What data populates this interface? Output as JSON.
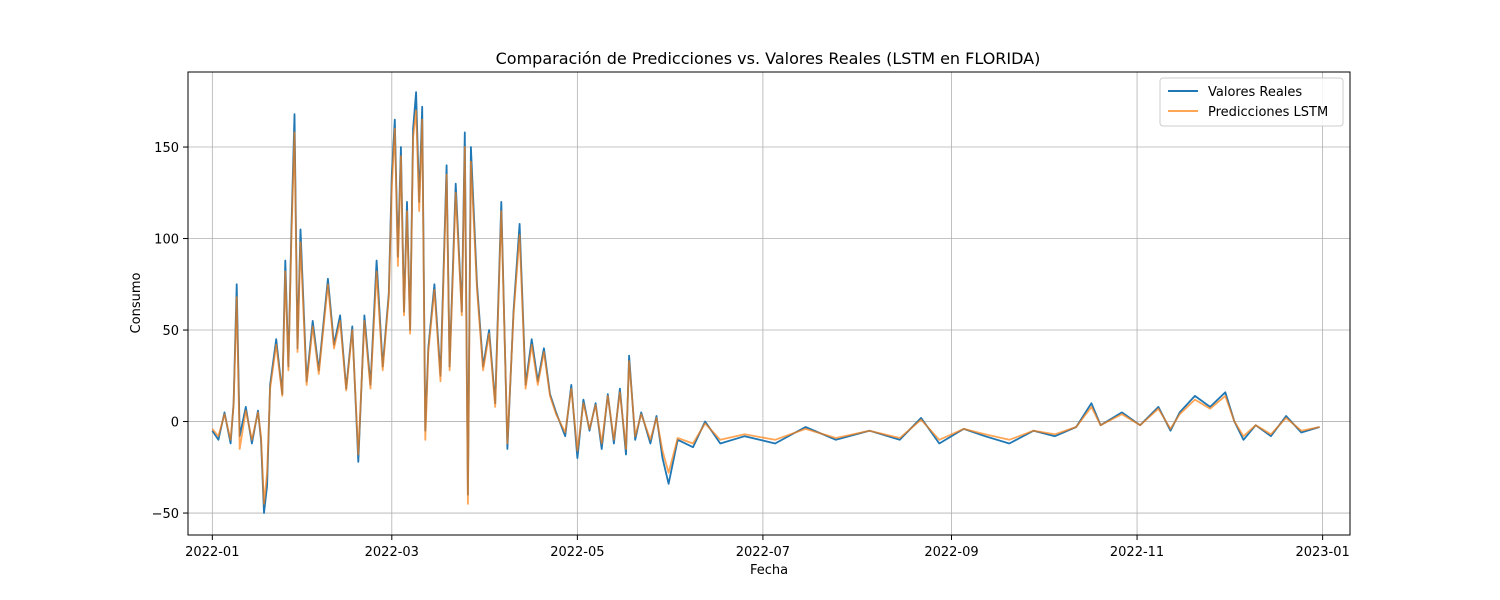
{
  "chart_data": {
    "type": "line",
    "title": "Comparación de Predicciones vs. Valores Reales (LSTM en FLORIDA)",
    "xlabel": "Fecha",
    "ylabel": "Consumo",
    "x_ticks": [
      "2022-01",
      "2022-03",
      "2022-05",
      "2022-07",
      "2022-09",
      "2022-11",
      "2023-01"
    ],
    "y_ticks": [
      -50,
      0,
      50,
      100,
      150
    ],
    "xlim": [
      "2021-12-24",
      "2023-01-10"
    ],
    "ylim": [
      -62,
      191
    ],
    "grid": true,
    "legend_position": "top-right",
    "colors": {
      "real": "#1f77b4",
      "pred": "#ff7f0e"
    },
    "series": [
      {
        "name": "Valores Reales",
        "key": "real",
        "points": [
          [
            "2022-01-01",
            -5
          ],
          [
            "2022-01-03",
            -10
          ],
          [
            "2022-01-05",
            5
          ],
          [
            "2022-01-07",
            -12
          ],
          [
            "2022-01-08",
            10
          ],
          [
            "2022-01-09",
            75
          ],
          [
            "2022-01-10",
            -8
          ],
          [
            "2022-01-12",
            8
          ],
          [
            "2022-01-14",
            -12
          ],
          [
            "2022-01-16",
            6
          ],
          [
            "2022-01-17",
            -10
          ],
          [
            "2022-01-18",
            -50
          ],
          [
            "2022-01-19",
            -35
          ],
          [
            "2022-01-20",
            20
          ],
          [
            "2022-01-22",
            45
          ],
          [
            "2022-01-24",
            15
          ],
          [
            "2022-01-25",
            88
          ],
          [
            "2022-01-26",
            30
          ],
          [
            "2022-01-27",
            105
          ],
          [
            "2022-01-28",
            168
          ],
          [
            "2022-01-29",
            40
          ],
          [
            "2022-01-30",
            105
          ],
          [
            "2022-02-01",
            22
          ],
          [
            "2022-02-03",
            55
          ],
          [
            "2022-02-05",
            28
          ],
          [
            "2022-02-08",
            78
          ],
          [
            "2022-02-10",
            42
          ],
          [
            "2022-02-12",
            58
          ],
          [
            "2022-02-14",
            18
          ],
          [
            "2022-02-16",
            52
          ],
          [
            "2022-02-18",
            -22
          ],
          [
            "2022-02-20",
            58
          ],
          [
            "2022-02-22",
            20
          ],
          [
            "2022-02-24",
            88
          ],
          [
            "2022-02-26",
            30
          ],
          [
            "2022-02-28",
            70
          ],
          [
            "2022-03-01",
            135
          ],
          [
            "2022-03-02",
            165
          ],
          [
            "2022-03-03",
            90
          ],
          [
            "2022-03-04",
            150
          ],
          [
            "2022-03-05",
            60
          ],
          [
            "2022-03-06",
            120
          ],
          [
            "2022-03-07",
            50
          ],
          [
            "2022-03-08",
            160
          ],
          [
            "2022-03-09",
            180
          ],
          [
            "2022-03-10",
            120
          ],
          [
            "2022-03-11",
            172
          ],
          [
            "2022-03-12",
            -5
          ],
          [
            "2022-03-13",
            40
          ],
          [
            "2022-03-15",
            75
          ],
          [
            "2022-03-17",
            25
          ],
          [
            "2022-03-19",
            140
          ],
          [
            "2022-03-20",
            30
          ],
          [
            "2022-03-22",
            130
          ],
          [
            "2022-03-24",
            60
          ],
          [
            "2022-03-25",
            158
          ],
          [
            "2022-03-26",
            -40
          ],
          [
            "2022-03-27",
            150
          ],
          [
            "2022-03-29",
            75
          ],
          [
            "2022-03-31",
            30
          ],
          [
            "2022-04-02",
            50
          ],
          [
            "2022-04-04",
            10
          ],
          [
            "2022-04-06",
            120
          ],
          [
            "2022-04-08",
            -15
          ],
          [
            "2022-04-10",
            60
          ],
          [
            "2022-04-12",
            108
          ],
          [
            "2022-04-14",
            20
          ],
          [
            "2022-04-16",
            45
          ],
          [
            "2022-04-18",
            22
          ],
          [
            "2022-04-20",
            40
          ],
          [
            "2022-04-22",
            15
          ],
          [
            "2022-04-24",
            5
          ],
          [
            "2022-04-27",
            -8
          ],
          [
            "2022-04-29",
            20
          ],
          [
            "2022-05-01",
            -20
          ],
          [
            "2022-05-03",
            12
          ],
          [
            "2022-05-05",
            -5
          ],
          [
            "2022-05-07",
            10
          ],
          [
            "2022-05-09",
            -15
          ],
          [
            "2022-05-11",
            15
          ],
          [
            "2022-05-13",
            -12
          ],
          [
            "2022-05-15",
            18
          ],
          [
            "2022-05-17",
            -18
          ],
          [
            "2022-05-18",
            36
          ],
          [
            "2022-05-20",
            -10
          ],
          [
            "2022-05-22",
            5
          ],
          [
            "2022-05-25",
            -12
          ],
          [
            "2022-05-27",
            3
          ],
          [
            "2022-05-29",
            -20
          ],
          [
            "2022-05-31",
            -34
          ],
          [
            "2022-06-03",
            -10
          ],
          [
            "2022-06-08",
            -14
          ],
          [
            "2022-06-12",
            0
          ],
          [
            "2022-06-17",
            -12
          ],
          [
            "2022-06-25",
            -8
          ],
          [
            "2022-07-05",
            -12
          ],
          [
            "2022-07-15",
            -3
          ],
          [
            "2022-07-25",
            -10
          ],
          [
            "2022-08-05",
            -5
          ],
          [
            "2022-08-15",
            -10
          ],
          [
            "2022-08-22",
            2
          ],
          [
            "2022-08-28",
            -12
          ],
          [
            "2022-09-05",
            -4
          ],
          [
            "2022-09-12",
            -8
          ],
          [
            "2022-09-20",
            -12
          ],
          [
            "2022-09-28",
            -5
          ],
          [
            "2022-10-05",
            -8
          ],
          [
            "2022-10-12",
            -3
          ],
          [
            "2022-10-17",
            10
          ],
          [
            "2022-10-20",
            -2
          ],
          [
            "2022-10-27",
            5
          ],
          [
            "2022-11-02",
            -2
          ],
          [
            "2022-11-08",
            8
          ],
          [
            "2022-11-12",
            -5
          ],
          [
            "2022-11-15",
            5
          ],
          [
            "2022-11-20",
            14
          ],
          [
            "2022-11-25",
            8
          ],
          [
            "2022-11-30",
            16
          ],
          [
            "2022-12-03",
            0
          ],
          [
            "2022-12-06",
            -10
          ],
          [
            "2022-12-10",
            -2
          ],
          [
            "2022-12-15",
            -8
          ],
          [
            "2022-12-20",
            3
          ],
          [
            "2022-12-25",
            -6
          ],
          [
            "2022-12-31",
            -3
          ]
        ]
      },
      {
        "name": "Predicciones LSTM",
        "key": "pred",
        "points": [
          [
            "2022-01-01",
            -4
          ],
          [
            "2022-01-03",
            -8
          ],
          [
            "2022-01-05",
            4
          ],
          [
            "2022-01-07",
            -10
          ],
          [
            "2022-01-08",
            9
          ],
          [
            "2022-01-09",
            68
          ],
          [
            "2022-01-10",
            -15
          ],
          [
            "2022-01-12",
            6
          ],
          [
            "2022-01-14",
            -10
          ],
          [
            "2022-01-16",
            5
          ],
          [
            "2022-01-17",
            -8
          ],
          [
            "2022-01-18",
            -45
          ],
          [
            "2022-01-19",
            -28
          ],
          [
            "2022-01-20",
            18
          ],
          [
            "2022-01-22",
            42
          ],
          [
            "2022-01-24",
            14
          ],
          [
            "2022-01-25",
            82
          ],
          [
            "2022-01-26",
            28
          ],
          [
            "2022-01-27",
            100
          ],
          [
            "2022-01-28",
            158
          ],
          [
            "2022-01-29",
            38
          ],
          [
            "2022-01-30",
            98
          ],
          [
            "2022-02-01",
            20
          ],
          [
            "2022-02-03",
            52
          ],
          [
            "2022-02-05",
            26
          ],
          [
            "2022-02-08",
            75
          ],
          [
            "2022-02-10",
            40
          ],
          [
            "2022-02-12",
            55
          ],
          [
            "2022-02-14",
            17
          ],
          [
            "2022-02-16",
            50
          ],
          [
            "2022-02-18",
            -18
          ],
          [
            "2022-02-20",
            55
          ],
          [
            "2022-02-22",
            18
          ],
          [
            "2022-02-24",
            82
          ],
          [
            "2022-02-26",
            28
          ],
          [
            "2022-02-28",
            68
          ],
          [
            "2022-03-01",
            128
          ],
          [
            "2022-03-02",
            160
          ],
          [
            "2022-03-03",
            85
          ],
          [
            "2022-03-04",
            145
          ],
          [
            "2022-03-05",
            58
          ],
          [
            "2022-03-06",
            115
          ],
          [
            "2022-03-07",
            48
          ],
          [
            "2022-03-08",
            155
          ],
          [
            "2022-03-09",
            170
          ],
          [
            "2022-03-10",
            115
          ],
          [
            "2022-03-11",
            165
          ],
          [
            "2022-03-12",
            -10
          ],
          [
            "2022-03-13",
            38
          ],
          [
            "2022-03-15",
            72
          ],
          [
            "2022-03-17",
            22
          ],
          [
            "2022-03-19",
            135
          ],
          [
            "2022-03-20",
            28
          ],
          [
            "2022-03-22",
            125
          ],
          [
            "2022-03-24",
            58
          ],
          [
            "2022-03-25",
            150
          ],
          [
            "2022-03-26",
            -45
          ],
          [
            "2022-03-27",
            142
          ],
          [
            "2022-03-29",
            72
          ],
          [
            "2022-03-31",
            28
          ],
          [
            "2022-04-02",
            48
          ],
          [
            "2022-04-04",
            8
          ],
          [
            "2022-04-06",
            115
          ],
          [
            "2022-04-08",
            -12
          ],
          [
            "2022-04-10",
            58
          ],
          [
            "2022-04-12",
            102
          ],
          [
            "2022-04-14",
            18
          ],
          [
            "2022-04-16",
            42
          ],
          [
            "2022-04-18",
            20
          ],
          [
            "2022-04-20",
            38
          ],
          [
            "2022-04-22",
            14
          ],
          [
            "2022-04-24",
            4
          ],
          [
            "2022-04-27",
            -6
          ],
          [
            "2022-04-29",
            18
          ],
          [
            "2022-05-01",
            -16
          ],
          [
            "2022-05-03",
            10
          ],
          [
            "2022-05-05",
            -4
          ],
          [
            "2022-05-07",
            9
          ],
          [
            "2022-05-09",
            -12
          ],
          [
            "2022-05-11",
            14
          ],
          [
            "2022-05-13",
            -10
          ],
          [
            "2022-05-15",
            16
          ],
          [
            "2022-05-17",
            -15
          ],
          [
            "2022-05-18",
            33
          ],
          [
            "2022-05-20",
            -8
          ],
          [
            "2022-05-22",
            4
          ],
          [
            "2022-05-25",
            -10
          ],
          [
            "2022-05-27",
            2
          ],
          [
            "2022-05-29",
            -16
          ],
          [
            "2022-05-31",
            -28
          ],
          [
            "2022-06-03",
            -9
          ],
          [
            "2022-06-08",
            -12
          ],
          [
            "2022-06-12",
            -1
          ],
          [
            "2022-06-17",
            -10
          ],
          [
            "2022-06-25",
            -7
          ],
          [
            "2022-07-05",
            -10
          ],
          [
            "2022-07-15",
            -4
          ],
          [
            "2022-07-25",
            -9
          ],
          [
            "2022-08-05",
            -5
          ],
          [
            "2022-08-15",
            -9
          ],
          [
            "2022-08-22",
            1
          ],
          [
            "2022-08-28",
            -10
          ],
          [
            "2022-09-05",
            -4
          ],
          [
            "2022-09-12",
            -7
          ],
          [
            "2022-09-20",
            -10
          ],
          [
            "2022-09-28",
            -5
          ],
          [
            "2022-10-05",
            -7
          ],
          [
            "2022-10-12",
            -3
          ],
          [
            "2022-10-17",
            8
          ],
          [
            "2022-10-20",
            -2
          ],
          [
            "2022-10-27",
            4
          ],
          [
            "2022-11-02",
            -2
          ],
          [
            "2022-11-08",
            7
          ],
          [
            "2022-11-12",
            -4
          ],
          [
            "2022-11-15",
            4
          ],
          [
            "2022-11-20",
            12
          ],
          [
            "2022-11-25",
            7
          ],
          [
            "2022-11-30",
            14
          ],
          [
            "2022-12-03",
            0
          ],
          [
            "2022-12-06",
            -8
          ],
          [
            "2022-12-10",
            -2
          ],
          [
            "2022-12-15",
            -7
          ],
          [
            "2022-12-20",
            2
          ],
          [
            "2022-12-25",
            -5
          ],
          [
            "2022-12-31",
            -3
          ]
        ]
      }
    ]
  }
}
